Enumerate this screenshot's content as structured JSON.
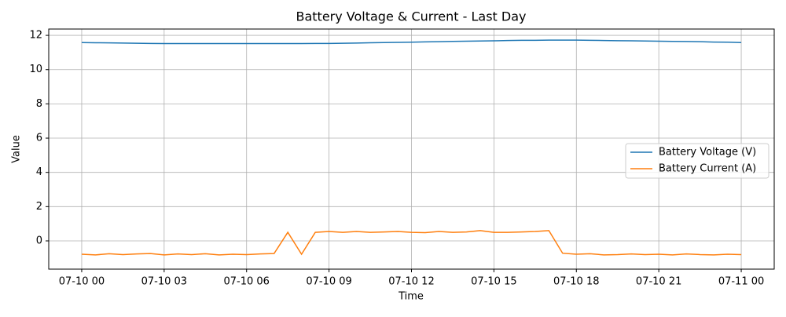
{
  "chart_data": {
    "type": "line",
    "title": "Battery Voltage & Current - Last Day",
    "xlabel": "Time",
    "ylabel": "Value",
    "x": [
      0,
      0.5,
      1,
      1.5,
      2,
      2.5,
      3,
      3.5,
      4,
      4.5,
      5,
      5.5,
      6,
      6.5,
      7,
      7.5,
      8,
      8.5,
      9,
      9.5,
      10,
      10.5,
      11,
      11.5,
      12,
      12.5,
      13,
      13.5,
      14,
      14.5,
      15,
      15.5,
      16,
      16.5,
      17,
      17.5,
      18,
      18.5,
      19,
      19.5,
      20,
      20.5,
      21,
      21.5,
      22,
      22.5,
      23,
      23.5,
      24
    ],
    "series": [
      {
        "name": "Battery Voltage (V)",
        "color": "#1f77b4",
        "values": [
          11.58,
          11.57,
          11.56,
          11.55,
          11.54,
          11.53,
          11.52,
          11.52,
          11.52,
          11.52,
          11.52,
          11.52,
          11.52,
          11.52,
          11.52,
          11.52,
          11.52,
          11.53,
          11.53,
          11.54,
          11.55,
          11.57,
          11.58,
          11.59,
          11.6,
          11.62,
          11.63,
          11.65,
          11.66,
          11.67,
          11.68,
          11.7,
          11.71,
          11.71,
          11.72,
          11.72,
          11.72,
          11.71,
          11.7,
          11.69,
          11.68,
          11.67,
          11.66,
          11.65,
          11.64,
          11.63,
          11.61,
          11.6,
          11.58
        ]
      },
      {
        "name": "Battery Current (A)",
        "color": "#ff7f0e",
        "values": [
          -0.78,
          -0.82,
          -0.75,
          -0.8,
          -0.76,
          -0.74,
          -0.82,
          -0.76,
          -0.8,
          -0.75,
          -0.82,
          -0.78,
          -0.8,
          -0.76,
          -0.74,
          0.5,
          -0.78,
          0.5,
          0.55,
          0.5,
          0.55,
          0.5,
          0.52,
          0.55,
          0.5,
          0.48,
          0.55,
          0.5,
          0.52,
          0.6,
          0.5,
          0.5,
          0.52,
          0.55,
          0.6,
          -0.72,
          -0.78,
          -0.75,
          -0.82,
          -0.8,
          -0.76,
          -0.8,
          -0.78,
          -0.82,
          -0.76,
          -0.8,
          -0.82,
          -0.78,
          -0.8
        ]
      }
    ],
    "xlim": [
      -1.2,
      25.2
    ],
    "xticks": [
      {
        "value": 0,
        "label": "07-10 00"
      },
      {
        "value": 3,
        "label": "07-10 03"
      },
      {
        "value": 6,
        "label": "07-10 06"
      },
      {
        "value": 9,
        "label": "07-10 09"
      },
      {
        "value": 12,
        "label": "07-10 12"
      },
      {
        "value": 15,
        "label": "07-10 15"
      },
      {
        "value": 18,
        "label": "07-10 18"
      },
      {
        "value": 21,
        "label": "07-10 21"
      },
      {
        "value": 24,
        "label": "07-11 00"
      }
    ],
    "ylim": [
      -1.65,
      12.37
    ],
    "yticks": [
      0,
      2,
      4,
      6,
      8,
      10,
      12
    ],
    "grid": true,
    "legend": "right"
  }
}
